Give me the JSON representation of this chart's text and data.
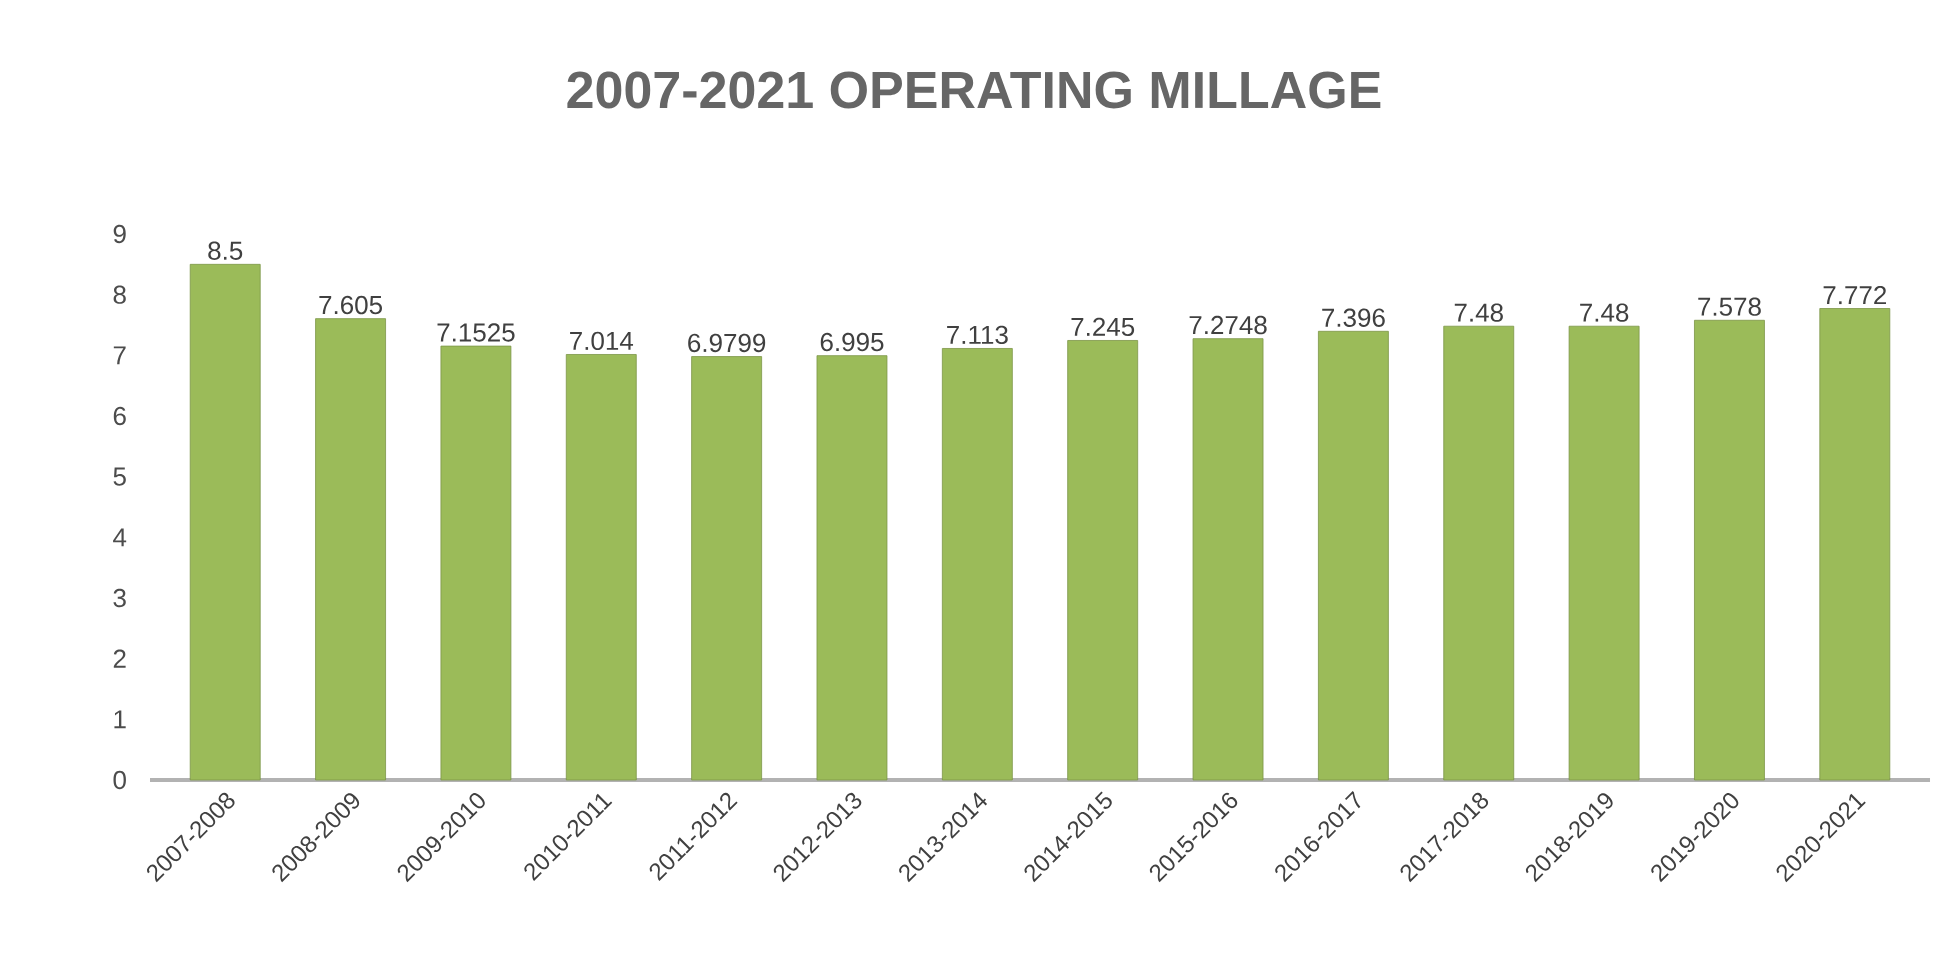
{
  "chart_data": {
    "type": "bar",
    "title": "2007-2021 OPERATING MILLAGE",
    "categories": [
      "2007-2008",
      "2008-2009",
      "2009-2010",
      "2010-2011",
      "2011-2012",
      "2012-2013",
      "2013-2014",
      "2014-2015",
      "2015-2016",
      "2016-2017",
      "2017-2018",
      "2018-2019",
      "2019-2020",
      "2020-2021"
    ],
    "values": [
      8.5,
      7.605,
      7.1525,
      7.014,
      6.9799,
      6.995,
      7.113,
      7.245,
      7.2748,
      7.396,
      7.48,
      7.48,
      7.578,
      7.772
    ],
    "color": "#9bbb59",
    "ylim": [
      0,
      9
    ],
    "yticks": [
      0,
      1,
      2,
      3,
      4,
      5,
      6,
      7,
      8,
      9
    ],
    "data_labels": true
  }
}
